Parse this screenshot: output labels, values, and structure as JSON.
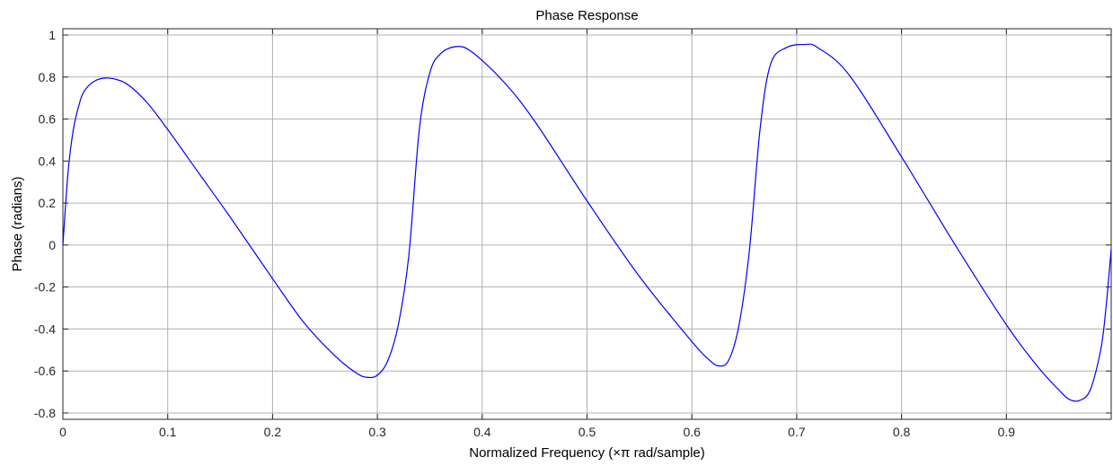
{
  "chart_data": {
    "type": "line",
    "title": "Phase Response",
    "xlabel": "Normalized Frequency (×π rad/sample)",
    "ylabel": "Phase (radians)",
    "xlim": [
      0,
      1
    ],
    "ylim": [
      -0.83,
      1.03
    ],
    "grid": true,
    "x_ticks": [
      0,
      0.1,
      0.2,
      0.3,
      0.4,
      0.5,
      0.6,
      0.7,
      0.8,
      0.9
    ],
    "x_tick_labels": [
      "0",
      "0.1",
      "0.2",
      "0.3",
      "0.4",
      "0.5",
      "0.6",
      "0.7",
      "0.8",
      "0.9"
    ],
    "y_ticks": [
      -0.8,
      -0.6,
      -0.4,
      -0.2,
      0,
      0.2,
      0.4,
      0.6,
      0.8,
      1
    ],
    "y_tick_labels": [
      "-0.8",
      "-0.6",
      "-0.4",
      "-0.2",
      "0",
      "0.2",
      "0.4",
      "0.6",
      "0.8",
      "1"
    ],
    "colors": {
      "line": "#0000ff",
      "grid": "#b0b0b0",
      "axes": "#262626"
    },
    "series": [
      {
        "x": [
          0,
          0.005,
          0.01,
          0.015,
          0.02,
          0.03,
          0.043,
          0.06,
          0.08,
          0.1,
          0.13,
          0.16,
          0.2,
          0.23,
          0.26,
          0.28,
          0.29,
          0.3,
          0.31,
          0.32,
          0.33,
          0.34,
          0.35,
          0.36,
          0.375,
          0.39,
          0.42,
          0.45,
          0.5,
          0.55,
          0.6,
          0.615,
          0.625,
          0.635,
          0.645,
          0.655,
          0.665,
          0.675,
          0.69,
          0.708,
          0.72,
          0.75,
          0.8,
          0.85,
          0.9,
          0.93,
          0.95,
          0.96,
          0.97,
          0.98,
          0.99,
          0.995,
          1.0
        ],
        "y": [
          0,
          0.35,
          0.55,
          0.66,
          0.73,
          0.78,
          0.795,
          0.77,
          0.68,
          0.55,
          0.34,
          0.13,
          -0.16,
          -0.37,
          -0.53,
          -0.61,
          -0.63,
          -0.62,
          -0.55,
          -0.38,
          -0.05,
          0.55,
          0.82,
          0.91,
          0.945,
          0.92,
          0.78,
          0.59,
          0.21,
          -0.15,
          -0.46,
          -0.54,
          -0.575,
          -0.55,
          -0.38,
          -0.02,
          0.55,
          0.86,
          0.94,
          0.955,
          0.94,
          0.81,
          0.42,
          0.01,
          -0.38,
          -0.58,
          -0.69,
          -0.735,
          -0.74,
          -0.69,
          -0.5,
          -0.3,
          -0.02
        ]
      }
    ]
  }
}
